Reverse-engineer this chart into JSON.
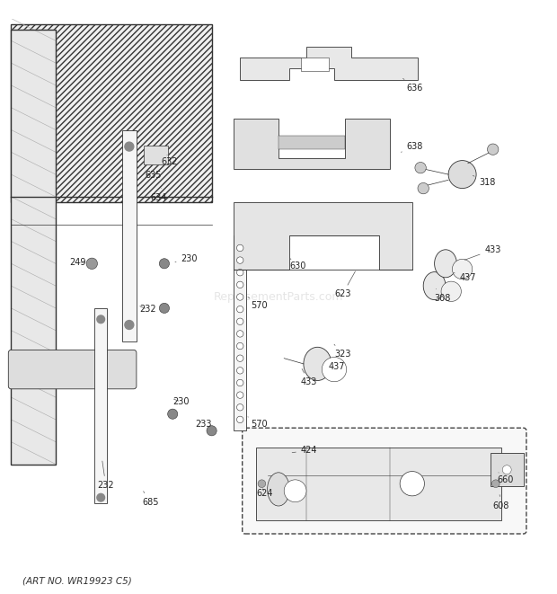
{
  "title": "",
  "footer": "(ART NO. WR19923 C5)",
  "bg_color": "#ffffff",
  "line_color": "#333333",
  "text_color": "#333333",
  "watermark": "ReplacementParts.com"
}
